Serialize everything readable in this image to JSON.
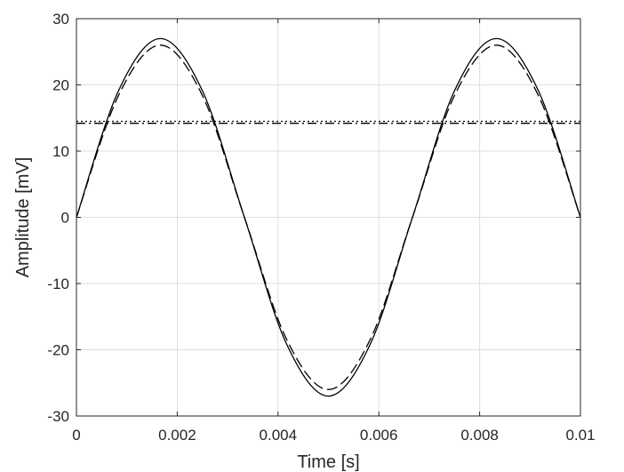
{
  "chart_data": {
    "type": "line",
    "xlabel": "Time [s]",
    "ylabel": "Amplitude [mV]",
    "xlim": [
      0,
      0.01
    ],
    "ylim": [
      -30,
      30
    ],
    "grid": true,
    "x_ticks": [
      "0",
      "0.002",
      "0.004",
      "0.006",
      "0.008",
      "0.01"
    ],
    "y_ticks": [
      "-30",
      "-20",
      "-10",
      "0",
      "10",
      "20",
      "30"
    ],
    "series": [
      {
        "style": "solid",
        "color": "#000000",
        "x": [
          0,
          0.000833,
          0.001667,
          0.0025,
          0.003333,
          0.004167,
          0.005,
          0.005833,
          0.006667,
          0.0075,
          0.008333,
          0.009167,
          0.01
        ],
        "y": [
          0,
          19.09,
          27.0,
          19.09,
          0,
          -19.09,
          -27.0,
          -19.09,
          0,
          19.09,
          27.0,
          19.09,
          0
        ]
      },
      {
        "style": "dashed",
        "color": "#000000",
        "x": [
          0,
          0.000833,
          0.001667,
          0.0025,
          0.003333,
          0.004167,
          0.005,
          0.005833,
          0.006667,
          0.0075,
          0.008333,
          0.009167,
          0.01
        ],
        "y": [
          0,
          18.38,
          26.0,
          18.38,
          0,
          -18.38,
          -26.0,
          -18.38,
          0,
          18.38,
          26.0,
          18.38,
          0
        ]
      },
      {
        "style": "dotted",
        "color": "#000000",
        "x": [
          0,
          0.01
        ],
        "y": [
          14.5,
          14.5
        ]
      },
      {
        "style": "dashdot",
        "color": "#000000",
        "x": [
          0,
          0.01
        ],
        "y": [
          14.2,
          14.2
        ]
      }
    ]
  }
}
